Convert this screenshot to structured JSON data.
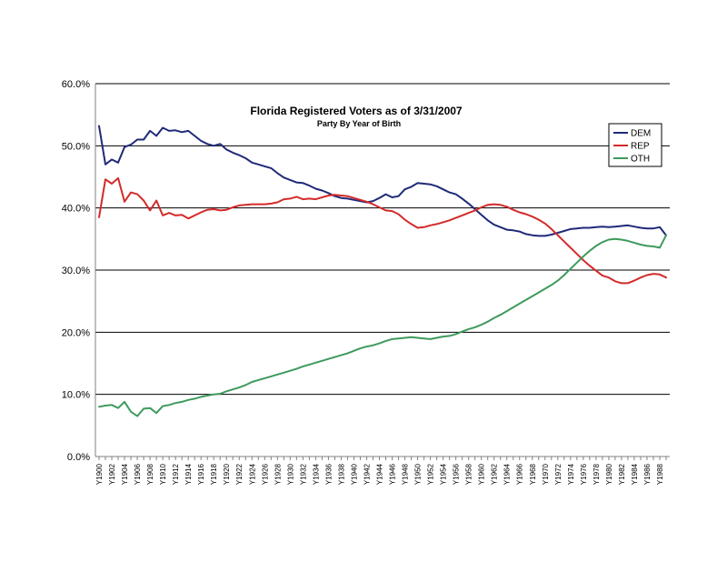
{
  "chart_data": {
    "type": "line",
    "title": "Florida Registered Voters as of 3/31/2007",
    "subtitle": "Party By Year of Birth",
    "xlabel": "",
    "ylabel": "",
    "ylim": [
      0,
      60
    ],
    "yticks": [
      "0.0%",
      "10.0%",
      "20.0%",
      "30.0%",
      "40.0%",
      "50.0%",
      "60.0%"
    ],
    "x_start": 1900,
    "x_end": 1989,
    "x_tick_labels": [
      "Y1900",
      "Y1902",
      "Y1904",
      "Y1906",
      "Y1908",
      "Y1910",
      "Y1912",
      "Y1914",
      "Y1916",
      "Y1918",
      "Y1920",
      "Y1922",
      "Y1924",
      "Y1926",
      "Y1928",
      "Y1930",
      "Y1932",
      "Y1934",
      "Y1936",
      "Y1938",
      "Y1940",
      "Y1942",
      "Y1944",
      "Y1946",
      "Y1948",
      "Y1950",
      "Y1952",
      "Y1954",
      "Y1956",
      "Y1958",
      "Y1960",
      "Y1962",
      "Y1964",
      "Y1966",
      "Y1968",
      "Y1970",
      "Y1972",
      "Y1974",
      "Y1976",
      "Y1978",
      "Y1980",
      "Y1982",
      "Y1984",
      "Y1986",
      "Y1988"
    ],
    "legend_position": "top-right",
    "grid": true,
    "series": [
      {
        "name": "DEM",
        "color": "#1f2a78",
        "values": [
          53.2,
          47.0,
          47.8,
          47.3,
          49.8,
          50.2,
          51.0,
          51.0,
          52.4,
          51.6,
          52.9,
          52.4,
          52.5,
          52.2,
          52.4,
          51.6,
          50.8,
          50.3,
          50.0,
          50.3,
          49.4,
          48.9,
          48.5,
          48.0,
          47.3,
          47.0,
          46.7,
          46.4,
          45.6,
          44.9,
          44.5,
          44.1,
          44.0,
          43.6,
          43.1,
          42.8,
          42.4,
          41.9,
          41.6,
          41.5,
          41.3,
          41.1,
          40.9,
          41.1,
          41.6,
          42.2,
          41.7,
          41.9,
          43.0,
          43.4,
          44.0,
          43.9,
          43.8,
          43.5,
          43.0,
          42.5,
          42.2,
          41.5,
          40.7,
          39.8,
          38.9,
          38.0,
          37.3,
          36.9,
          36.5,
          36.4,
          36.2,
          35.8,
          35.6,
          35.5,
          35.5,
          35.7,
          36.0,
          36.3,
          36.6,
          36.7,
          36.8,
          36.8,
          36.9,
          37.0,
          36.9,
          37.0,
          37.1,
          37.2,
          37.0,
          36.8,
          36.7,
          36.7,
          36.9,
          35.6
        ]
      },
      {
        "name": "REP",
        "color": "#d42a2a",
        "values": [
          38.5,
          44.6,
          43.9,
          44.8,
          41.0,
          42.5,
          42.2,
          41.2,
          39.6,
          41.2,
          38.8,
          39.2,
          38.8,
          38.9,
          38.3,
          38.8,
          39.3,
          39.7,
          39.8,
          39.6,
          39.7,
          40.1,
          40.4,
          40.5,
          40.6,
          40.6,
          40.6,
          40.7,
          40.9,
          41.4,
          41.5,
          41.8,
          41.4,
          41.5,
          41.4,
          41.7,
          42.0,
          42.1,
          42.0,
          41.9,
          41.6,
          41.3,
          41.0,
          40.6,
          40.1,
          39.6,
          39.5,
          39.0,
          38.1,
          37.4,
          36.8,
          36.9,
          37.2,
          37.4,
          37.7,
          38.0,
          38.4,
          38.8,
          39.2,
          39.6,
          40.1,
          40.5,
          40.6,
          40.5,
          40.2,
          39.7,
          39.3,
          39.0,
          38.6,
          38.1,
          37.5,
          36.6,
          35.6,
          34.6,
          33.6,
          32.6,
          31.6,
          30.7,
          29.9,
          29.1,
          28.8,
          28.2,
          27.9,
          27.9,
          28.3,
          28.8,
          29.2,
          29.4,
          29.3,
          28.8
        ]
      },
      {
        "name": "OTH",
        "color": "#3f9a5c",
        "values": [
          8.0,
          8.2,
          8.3,
          7.8,
          8.8,
          7.2,
          6.5,
          7.7,
          7.8,
          7.0,
          8.1,
          8.3,
          8.6,
          8.8,
          9.1,
          9.3,
          9.6,
          9.8,
          10.0,
          10.1,
          10.5,
          10.8,
          11.1,
          11.5,
          12.0,
          12.3,
          12.6,
          12.9,
          13.2,
          13.5,
          13.8,
          14.1,
          14.5,
          14.8,
          15.1,
          15.4,
          15.7,
          16.0,
          16.3,
          16.6,
          17.0,
          17.4,
          17.7,
          17.9,
          18.2,
          18.6,
          18.9,
          19.0,
          19.1,
          19.2,
          19.1,
          19.0,
          18.9,
          19.1,
          19.3,
          19.4,
          19.7,
          20.1,
          20.5,
          20.8,
          21.2,
          21.7,
          22.3,
          22.8,
          23.4,
          24.0,
          24.6,
          25.2,
          25.8,
          26.4,
          27.0,
          27.6,
          28.3,
          29.2,
          30.2,
          31.2,
          32.2,
          33.1,
          33.9,
          34.5,
          34.9,
          35.0,
          34.9,
          34.7,
          34.4,
          34.1,
          33.9,
          33.8,
          33.6,
          35.6
        ]
      }
    ]
  }
}
